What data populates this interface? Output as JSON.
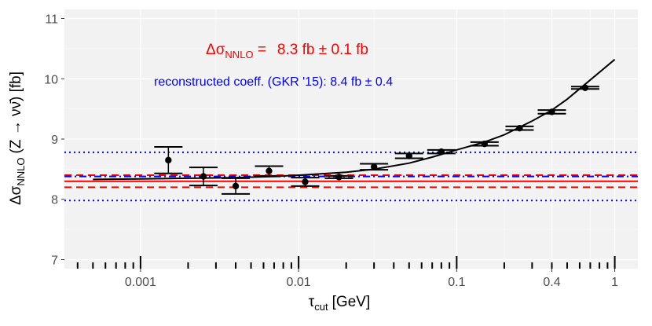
{
  "chart_data": {
    "type": "scatter",
    "x_scale": "log",
    "xlim": [
      0.00033,
      1.4
    ],
    "ylim": [
      6.85,
      11.15
    ],
    "xticks": [
      {
        "value": 0.001,
        "label": "0.001"
      },
      {
        "value": 0.01,
        "label": "0.01"
      },
      {
        "value": 0.1,
        "label": "0.1"
      },
      {
        "value": 0.4,
        "label": "0.4"
      },
      {
        "value": 1,
        "label": "1"
      }
    ],
    "yticks": [
      {
        "value": 7,
        "label": "7"
      },
      {
        "value": 8,
        "label": "8"
      },
      {
        "value": 9,
        "label": "9"
      },
      {
        "value": 10,
        "label": "10"
      },
      {
        "value": 11,
        "label": "11"
      }
    ],
    "rug_major": [
      0.001,
      0.01,
      0.1,
      1
    ],
    "rug_minor": [
      0.0004,
      0.0005,
      0.0006,
      0.0007,
      0.0008,
      0.0009,
      0.002,
      0.003,
      0.004,
      0.005,
      0.006,
      0.007,
      0.008,
      0.009,
      0.02,
      0.03,
      0.04,
      0.05,
      0.06,
      0.07,
      0.08,
      0.09,
      0.2,
      0.3,
      0.4,
      0.5,
      0.6,
      0.7,
      0.8,
      0.9
    ],
    "xlabel_main": "τ",
    "xlabel_sub": "cut",
    "xlabel_unit": "[GeV]",
    "ylabel_main": "Δσ",
    "ylabel_sub": "NNLO",
    "ylabel_rest": "(Z → νν̄) [fb]",
    "points": [
      {
        "x": 0.0015,
        "y": 8.65,
        "err": 0.22
      },
      {
        "x": 0.0025,
        "y": 8.38,
        "err": 0.15
      },
      {
        "x": 0.004,
        "y": 8.22,
        "err": 0.13
      },
      {
        "x": 0.0065,
        "y": 8.47,
        "err": 0.08
      },
      {
        "x": 0.011,
        "y": 8.29,
        "err": 0.07
      },
      {
        "x": 0.018,
        "y": 8.37,
        "err": 0.02
      },
      {
        "x": 0.03,
        "y": 8.54,
        "err": 0.05
      },
      {
        "x": 0.05,
        "y": 8.72,
        "err": 0.04
      },
      {
        "x": 0.08,
        "y": 8.79,
        "err": 0.03
      },
      {
        "x": 0.15,
        "y": 8.92,
        "err": 0.03
      },
      {
        "x": 0.25,
        "y": 9.18,
        "err": 0.03
      },
      {
        "x": 0.4,
        "y": 9.45,
        "err": 0.03
      },
      {
        "x": 0.65,
        "y": 9.85,
        "err": 0.02
      }
    ],
    "fit_curve": [
      {
        "x": 0.0005,
        "y": 8.33
      },
      {
        "x": 0.001,
        "y": 8.34
      },
      {
        "x": 0.002,
        "y": 8.35
      },
      {
        "x": 0.004,
        "y": 8.36
      },
      {
        "x": 0.007,
        "y": 8.38
      },
      {
        "x": 0.01,
        "y": 8.4
      },
      {
        "x": 0.02,
        "y": 8.45
      },
      {
        "x": 0.03,
        "y": 8.5
      },
      {
        "x": 0.05,
        "y": 8.6
      },
      {
        "x": 0.07,
        "y": 8.7
      },
      {
        "x": 0.1,
        "y": 8.82
      },
      {
        "x": 0.15,
        "y": 8.95
      },
      {
        "x": 0.2,
        "y": 9.07
      },
      {
        "x": 0.3,
        "y": 9.3
      },
      {
        "x": 0.4,
        "y": 9.48
      },
      {
        "x": 0.5,
        "y": 9.66
      },
      {
        "x": 0.7,
        "y": 9.98
      },
      {
        "x": 1.0,
        "y": 10.32
      }
    ],
    "hlines": [
      {
        "y": 8.3,
        "color": "#ff0000",
        "style": "solid"
      },
      {
        "y": 8.4,
        "color": "#ff0000",
        "style": "dashed"
      },
      {
        "y": 8.2,
        "color": "#ff0000",
        "style": "dashed"
      },
      {
        "y": 8.38,
        "color": "#0000ff",
        "style": "dashdot"
      },
      {
        "y": 8.78,
        "color": "#0000ff",
        "style": "dotted"
      },
      {
        "y": 7.98,
        "color": "#0000ff",
        "style": "dotted"
      }
    ],
    "annotations": {
      "nnlo_label_main": "Δσ",
      "nnlo_label_sub": "NNLO",
      "nnlo_label_eq": " =",
      "nnlo_value": "8.3 fb ± 0.1 fb",
      "nnlo_color": "#ff0000",
      "gkr_text": "reconstructed coeff. (GKR '15): 8.4 fb ± 0.4",
      "gkr_color": "#0000ff"
    },
    "grid": true,
    "background": "#f2f2f2"
  }
}
